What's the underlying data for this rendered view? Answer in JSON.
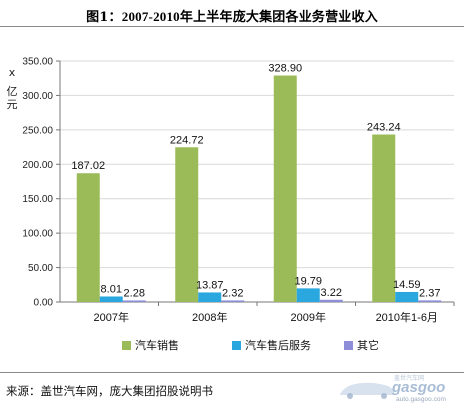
{
  "title": {
    "prefix": "图1：",
    "years": "2007-2010",
    "rest": "年上半年庞大集团各业务营业收入"
  },
  "y_unit": {
    "x_mark": "x",
    "unit_chars": [
      "亿",
      "元"
    ]
  },
  "source": "来源：盖世汽车网，庞大集团招股说明书",
  "logo": {
    "brand": "gasgoo",
    "sub": "auto.gasgoo.com",
    "cn": "盖世汽车网"
  },
  "colors": {
    "car_sales": "#9bbb59",
    "after_sales": "#2aa7de",
    "other": "#8e8ed8",
    "axis": "#777777",
    "grid": "#d9d9d9"
  },
  "chart_data": {
    "type": "bar",
    "categories": [
      "2007年",
      "2008年",
      "2009年",
      "2010年1-6月"
    ],
    "series": [
      {
        "name": "汽车销售",
        "values": [
          187.02,
          224.72,
          328.9,
          243.24
        ],
        "labels": [
          "187.02",
          "224.72",
          "328.90",
          "243.24"
        ]
      },
      {
        "name": "汽车售后服务",
        "values": [
          8.01,
          13.87,
          19.79,
          14.59
        ],
        "labels": [
          "8.01",
          "13.87",
          "19.79",
          "14.59"
        ]
      },
      {
        "name": "其它",
        "values": [
          2.28,
          2.32,
          3.22,
          2.37
        ],
        "labels": [
          "2.28",
          "2.32",
          "3.22",
          "2.37"
        ]
      }
    ],
    "ylim": [
      0,
      350
    ],
    "yticks": [
      "0.00",
      "50.00",
      "100.00",
      "150.00",
      "200.00",
      "250.00",
      "300.00",
      "350.00"
    ],
    "ylabel": "亿元",
    "legend_position": "bottom",
    "grid": true
  }
}
